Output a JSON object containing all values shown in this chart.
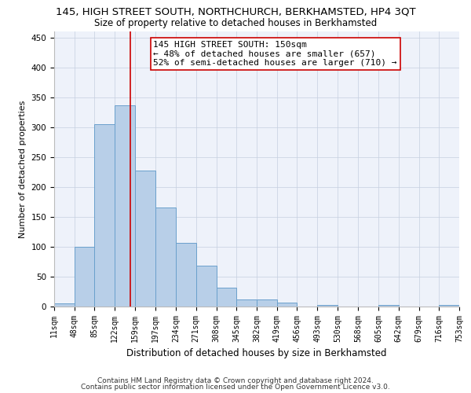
{
  "title": "145, HIGH STREET SOUTH, NORTHCHURCH, BERKHAMSTED, HP4 3QT",
  "subtitle": "Size of property relative to detached houses in Berkhamsted",
  "xlabel": "Distribution of detached houses by size in Berkhamsted",
  "ylabel": "Number of detached properties",
  "bin_edges": [
    11,
    48,
    85,
    122,
    159,
    197,
    234,
    271,
    308,
    345,
    382,
    419,
    456,
    493,
    530,
    568,
    605,
    642,
    679,
    716,
    753
  ],
  "bar_heights": [
    5,
    100,
    305,
    337,
    228,
    165,
    107,
    68,
    32,
    12,
    12,
    6,
    0,
    3,
    0,
    0,
    3,
    0,
    0,
    3
  ],
  "bar_color": "#b8cfe8",
  "bar_edgecolor": "#6aa0cc",
  "bar_linewidth": 0.7,
  "grid_color": "#c5cfe0",
  "bg_color": "#eef2fa",
  "vline_x": 150,
  "vline_color": "#cc0000",
  "vline_linewidth": 1.2,
  "annotation_lines": [
    "145 HIGH STREET SOUTH: 150sqm",
    "← 48% of detached houses are smaller (657)",
    "52% of semi-detached houses are larger (710) →"
  ],
  "annotation_box_edgecolor": "#cc0000",
  "annotation_box_facecolor": "#ffffff",
  "ylim": [
    0,
    460
  ],
  "yticks": [
    0,
    50,
    100,
    150,
    200,
    250,
    300,
    350,
    400,
    450
  ],
  "footer_line1": "Contains HM Land Registry data © Crown copyright and database right 2024.",
  "footer_line2": "Contains public sector information licensed under the Open Government Licence v3.0.",
  "title_fontsize": 9.5,
  "subtitle_fontsize": 8.5,
  "tick_fontsize": 7,
  "ylabel_fontsize": 8,
  "xlabel_fontsize": 8.5,
  "footer_fontsize": 6.5,
  "annotation_fontsize": 8
}
